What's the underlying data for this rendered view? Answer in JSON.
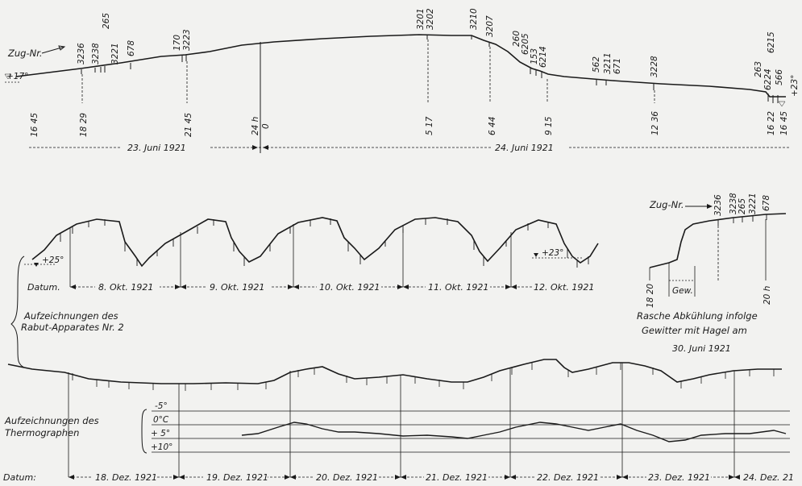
{
  "top_panel": {
    "zug_label": "Zug-Nr.",
    "start_temp": "+17°",
    "end_temp": "+23°",
    "train_groups": [
      "3236",
      "3238\n265\n3221",
      "678",
      "170\n3223",
      "3201\n3202",
      "3210",
      "3207",
      "260\n6205\n153\n6214",
      "562",
      "3211\n671",
      "3228",
      "263\n6224",
      "6215\n566"
    ],
    "train_numbers": [
      "3236",
      "3238",
      "265",
      "3221",
      "678",
      "170",
      "3223",
      "3201",
      "3202",
      "3210",
      "3207",
      "260",
      "6205",
      "153",
      "6214",
      "562",
      "3211",
      "671",
      "3228",
      "263",
      "6215",
      "6224",
      "566"
    ],
    "time_ticks": [
      "16 45",
      "18 29",
      "21 45",
      "24 h",
      "0",
      "5 17",
      "6 44",
      "9 15",
      "12 36",
      "16 22",
      "16 45"
    ],
    "date_1": "23. Juni 1921",
    "date_2": "24. Juni 1921"
  },
  "middle_panel": {
    "temp_left": "+25°",
    "temp_right": "+23°",
    "datum_label": "Datum.",
    "dates": [
      "8. Okt. 1921",
      "9. Okt. 1921",
      "10. Okt. 1921",
      "11. Okt. 1921",
      "12. Okt. 1921"
    ],
    "caption_line1": "Aufzeichnungen des",
    "caption_line2": "Rabut-Apparates Nr. 2"
  },
  "inset": {
    "zug_label": "Zug-Nr.",
    "trains": [
      "3236",
      "3238",
      "265",
      "3221",
      "678"
    ],
    "time_start": "18 20",
    "time_end": "20 h",
    "gew_label": "Gew.",
    "caption_line1": "Rasche Abkühlung infolge",
    "caption_line2": "Gewitter mit Hagel am",
    "caption_line3": "30. Juni 1921"
  },
  "bottom_panel": {
    "thermo_caption_line1": "Aufzeichnungen des",
    "thermo_caption_line2": "Thermographen",
    "temp_scale": [
      "-5°",
      "0°C",
      "+ 5°",
      "+10°"
    ],
    "datum_label": "Datum:",
    "dates": [
      "18. Dez. 1921",
      "19. Dez. 1921",
      "20. Dez. 1921",
      "21. Dez. 1921",
      "22. Dez. 1921",
      "23. Dez. 1921",
      "24. Dez. 21"
    ]
  }
}
